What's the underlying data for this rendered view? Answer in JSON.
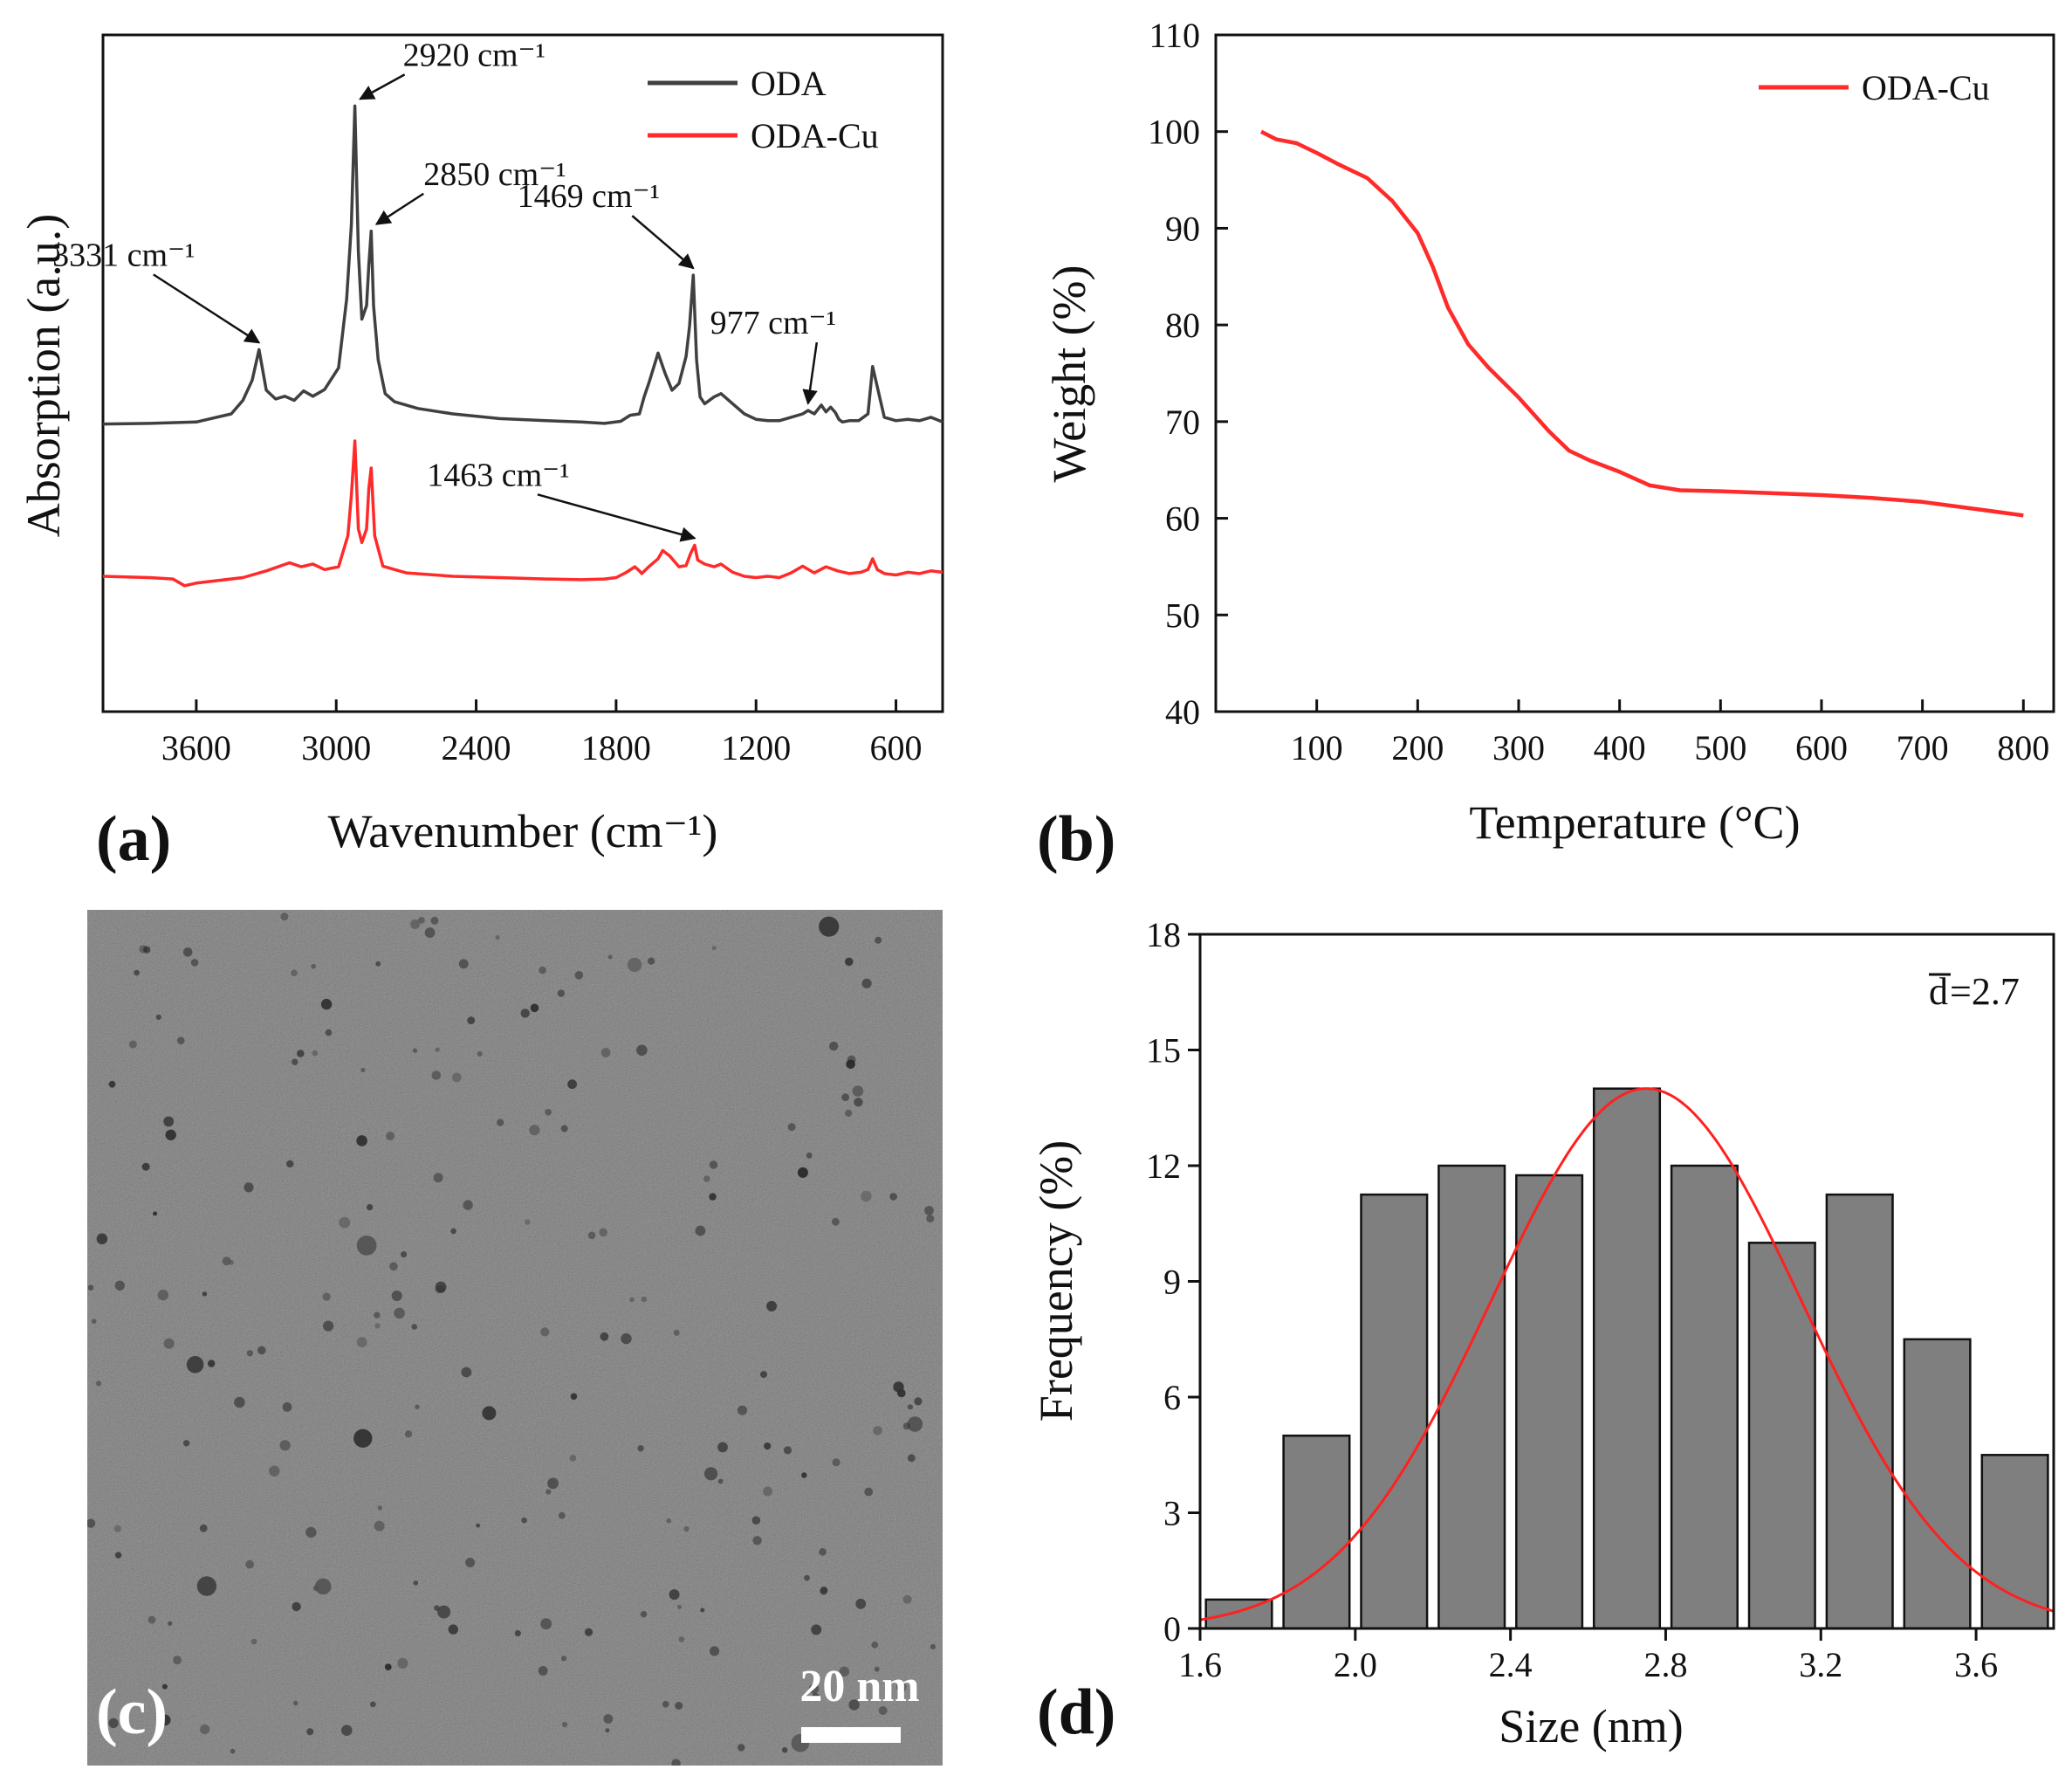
{
  "colors": {
    "oda": "#404040",
    "oda_cu": "#ff2a2a",
    "bar_fill": "#7f7f7f",
    "fit": "#ff2020",
    "tem_bg": "#8f8f8f"
  },
  "chart_data": [
    {
      "panel": "a",
      "panel_label": "(a)",
      "type": "line",
      "xlabel": "Wavenumber (cm⁻¹)",
      "ylabel": "Absorption (a.u.)",
      "xlim": [
        4000,
        400
      ],
      "ylim": [
        0,
        100
      ],
      "x_reversed": true,
      "y_ticks_shown": false,
      "xticks": [
        3600,
        3000,
        2400,
        1800,
        1200,
        600
      ],
      "series": [
        {
          "name": "ODA",
          "color": "#404040",
          "x": [
            4000,
            3800,
            3600,
            3450,
            3400,
            3360,
            3331,
            3300,
            3260,
            3220,
            3180,
            3140,
            3100,
            3050,
            2990,
            2955,
            2935,
            2920,
            2905,
            2890,
            2870,
            2860,
            2850,
            2840,
            2820,
            2790,
            2750,
            2650,
            2500,
            2300,
            2100,
            1950,
            1850,
            1780,
            1740,
            1700,
            1680,
            1660,
            1620,
            1590,
            1560,
            1530,
            1500,
            1485,
            1469,
            1455,
            1440,
            1420,
            1380,
            1350,
            1300,
            1250,
            1200,
            1150,
            1100,
            1050,
            1000,
            977,
            950,
            920,
            900,
            880,
            860,
            845,
            830,
            800,
            760,
            720,
            700,
            650,
            600,
            550,
            500,
            450,
            400
          ],
          "y": [
            42.5,
            42.6,
            42.8,
            44.0,
            46.0,
            49.0,
            53.5,
            47.5,
            46.2,
            46.6,
            46.0,
            47.4,
            46.6,
            47.6,
            50.8,
            61.0,
            72.0,
            89.5,
            68.0,
            58.0,
            60.0,
            66.0,
            71.0,
            60.0,
            52.0,
            47.0,
            45.8,
            44.8,
            44.0,
            43.3,
            43.0,
            42.8,
            42.6,
            42.9,
            43.8,
            44.0,
            46.5,
            48.5,
            53.0,
            50.0,
            47.5,
            48.5,
            52.5,
            57.0,
            64.5,
            52.0,
            46.5,
            45.5,
            46.5,
            47.0,
            45.5,
            44.0,
            43.2,
            43.0,
            43.0,
            43.5,
            44.0,
            44.5,
            44.0,
            45.3,
            44.3,
            45.0,
            44.2,
            43.2,
            42.8,
            43.0,
            43.0,
            44.0,
            51.0,
            43.5,
            43.0,
            43.2,
            43.0,
            43.5,
            42.8
          ]
        },
        {
          "name": "ODA-Cu",
          "color": "#ff2a2a",
          "x": [
            4000,
            3800,
            3700,
            3650,
            3600,
            3500,
            3400,
            3300,
            3200,
            3150,
            3100,
            3050,
            2990,
            2950,
            2935,
            2920,
            2905,
            2890,
            2870,
            2860,
            2850,
            2835,
            2800,
            2700,
            2500,
            2300,
            2100,
            1950,
            1850,
            1800,
            1760,
            1720,
            1700,
            1690,
            1660,
            1620,
            1600,
            1570,
            1530,
            1500,
            1480,
            1463,
            1450,
            1420,
            1380,
            1350,
            1300,
            1250,
            1200,
            1150,
            1100,
            1050,
            1000,
            950,
            900,
            850,
            800,
            750,
            720,
            700,
            680,
            650,
            600,
            550,
            500,
            450,
            400
          ],
          "y": [
            20.0,
            19.8,
            19.6,
            18.6,
            19.0,
            19.4,
            19.8,
            20.8,
            22.0,
            21.4,
            21.8,
            21.0,
            21.4,
            26.0,
            32.0,
            40.0,
            27.0,
            25.0,
            27.0,
            33.0,
            36.0,
            26.0,
            21.5,
            20.5,
            20.0,
            19.8,
            19.6,
            19.5,
            19.6,
            19.8,
            20.5,
            21.4,
            20.8,
            20.4,
            21.4,
            22.6,
            23.8,
            23.0,
            21.4,
            21.6,
            23.4,
            24.6,
            22.4,
            21.8,
            21.4,
            21.8,
            20.6,
            20.0,
            19.8,
            20.0,
            19.8,
            20.5,
            21.5,
            20.5,
            21.4,
            20.8,
            20.4,
            20.6,
            21.0,
            22.6,
            21.0,
            20.4,
            20.2,
            20.6,
            20.4,
            20.8,
            20.6
          ]
        }
      ],
      "legend": {
        "entries": [
          "ODA",
          "ODA-Cu"
        ],
        "position": "top-right"
      },
      "annotations": [
        {
          "label": "3331 cm⁻¹",
          "x": 3331,
          "series": "ODA"
        },
        {
          "label": "2920 cm⁻¹",
          "x": 2920,
          "series": "ODA"
        },
        {
          "label": "2850 cm⁻¹",
          "x": 2850,
          "series": "ODA"
        },
        {
          "label": "1469 cm⁻¹",
          "x": 1469,
          "series": "ODA"
        },
        {
          "label": "977 cm⁻¹",
          "x": 977,
          "series": "ODA"
        },
        {
          "label": "1463 cm⁻¹",
          "x": 1463,
          "series": "ODA-Cu"
        }
      ]
    },
    {
      "panel": "b",
      "panel_label": "(b)",
      "type": "line",
      "xlabel": "Temperature (°C)",
      "ylabel": "Weight (%)",
      "xlim": [
        0,
        830
      ],
      "ylim": [
        40,
        110
      ],
      "xticks": [
        100,
        200,
        300,
        400,
        500,
        600,
        700,
        800
      ],
      "yticks": [
        40,
        50,
        60,
        70,
        80,
        90,
        100,
        110
      ],
      "series": [
        {
          "name": "ODA-Cu",
          "color": "#ff2a2a",
          "x": [
            45,
            60,
            80,
            100,
            120,
            150,
            175,
            200,
            215,
            230,
            250,
            270,
            300,
            330,
            350,
            370,
            400,
            430,
            460,
            500,
            550,
            600,
            650,
            700,
            750,
            800
          ],
          "y": [
            100.0,
            99.2,
            98.8,
            97.8,
            96.7,
            95.2,
            92.8,
            89.5,
            86.0,
            81.8,
            78.0,
            75.6,
            72.5,
            69.0,
            67.0,
            66.0,
            64.8,
            63.4,
            62.9,
            62.8,
            62.6,
            62.4,
            62.1,
            61.7,
            61.0,
            60.3
          ]
        }
      ],
      "legend": {
        "entries": [
          "ODA-Cu"
        ],
        "position": "top-right"
      }
    },
    {
      "panel": "d",
      "panel_label": "(d)",
      "type": "bar",
      "xlabel": "Size (nm)",
      "ylabel": "Frequency (%)",
      "xlim": [
        1.6,
        3.8
      ],
      "ylim": [
        0,
        18
      ],
      "xticks": [
        1.6,
        2.0,
        2.4,
        2.8,
        3.2,
        3.6
      ],
      "yticks": [
        0,
        3,
        6,
        9,
        12,
        15,
        18
      ],
      "bin_centers": [
        1.7,
        1.9,
        2.1,
        2.3,
        2.5,
        2.7,
        2.9,
        3.1,
        3.3,
        3.5,
        3.7
      ],
      "values": [
        0.75,
        5.0,
        11.25,
        12.0,
        11.75,
        14.0,
        12.0,
        10.0,
        11.25,
        7.5,
        4.5
      ],
      "fit": {
        "type": "gaussian",
        "center": 2.75,
        "amplitude": 14.0,
        "sigma": 0.4
      },
      "mean_label_symbol": "d",
      "mean_label_value": "=2.7"
    }
  ],
  "image_panel": {
    "panel_label": "(c)",
    "scale_bar_label": "20 nm"
  }
}
